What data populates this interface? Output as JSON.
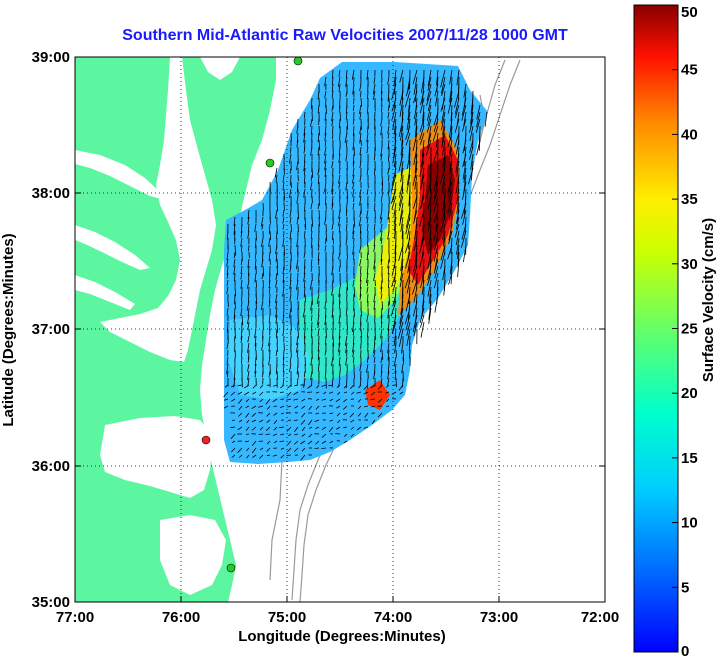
{
  "title": "Southern Mid-Atlantic Raw Velocities 2007/11/28 1000 GMT",
  "x_axis": {
    "label": "Longitude (Degrees:Minutes)",
    "ticks": [
      "77:00",
      "76:00",
      "75:00",
      "74:00",
      "73:00",
      "72:00"
    ],
    "range": [
      -77,
      -72
    ]
  },
  "y_axis": {
    "label": "Latitude (Degrees:Minutes)",
    "ticks": [
      "39:00",
      "38:00",
      "37:00",
      "36:00",
      "35:00"
    ],
    "range": [
      35,
      39
    ]
  },
  "colorbar": {
    "label": "Surface Velocity (cm/s)",
    "ticks": [
      "50",
      "45",
      "40",
      "35",
      "30",
      "25",
      "20",
      "15",
      "10",
      "5",
      "0"
    ],
    "range": [
      0,
      50
    ],
    "colormap": "jet"
  },
  "colors": {
    "land": "#5cf5a0",
    "water": "#ffffff",
    "bathymetry": "#9a9a9a",
    "title": "#1a1aff",
    "radar_site": "#22cc22",
    "radar_site_selected": "#ee2222"
  },
  "grid": true
}
